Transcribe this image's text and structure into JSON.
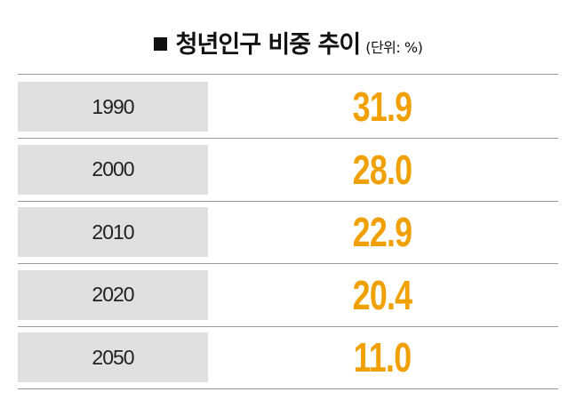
{
  "header": {
    "title": "청년인구 비중 추이",
    "unit": "(단위: %)"
  },
  "table": {
    "rows": [
      [
        "1990",
        "31.9"
      ],
      [
        "2000",
        "28.0"
      ],
      [
        "2010",
        "22.9"
      ],
      [
        "2020",
        "20.4"
      ],
      [
        "2050",
        "11.0"
      ]
    ]
  }
}
